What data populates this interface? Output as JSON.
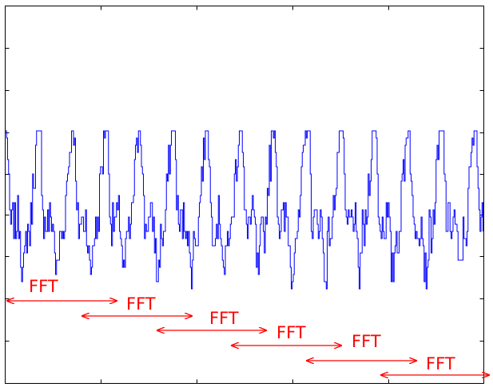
{
  "diagram": {
    "signal_color": "#0000ff",
    "annotation_color": "#ff0000",
    "axes_color": "#000000",
    "plot_type": "time-domain waveform with overlapping FFT windows",
    "window_count": 6,
    "windows": [
      {
        "label": "FFT"
      },
      {
        "label": "FFT"
      },
      {
        "label": "FFT"
      },
      {
        "label": "FFT"
      },
      {
        "label": "FFT"
      },
      {
        "label": "FFT"
      }
    ]
  }
}
